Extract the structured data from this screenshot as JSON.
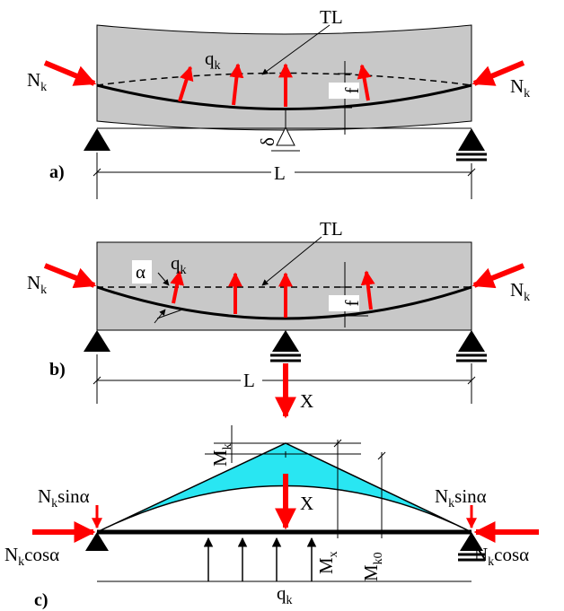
{
  "panel_a": {
    "label": "a)",
    "tendon_label": "TL",
    "load_main": "q",
    "load_sub": "k",
    "force_left_main": "N",
    "force_left_sub": "k",
    "force_right_main": "N",
    "force_right_sub": "k",
    "sag": "f",
    "deflection": "δ",
    "span": "L"
  },
  "panel_b": {
    "label": "b)",
    "tendon_label": "TL",
    "angle": "α",
    "load_main": "q",
    "load_sub": "k",
    "force_left_main": "N",
    "force_left_sub": "k",
    "force_right_main": "N",
    "force_right_sub": "k",
    "sag": "f",
    "span": "L",
    "reaction": "X"
  },
  "panel_c": {
    "label": "c)",
    "moment_k_main": "M",
    "moment_k_sub": "k",
    "moment_x_main": "M",
    "moment_x_sub": "x",
    "moment_k0_main": "M",
    "moment_k0_sub": "k0",
    "reaction": "X",
    "vert_left_main": "N",
    "vert_left_sub": "k",
    "vert_left_tail": "sinα",
    "vert_right_main": "N",
    "vert_right_sub": "k",
    "vert_right_tail": "sinα",
    "horiz_left_main": "N",
    "horiz_left_sub": "k",
    "horiz_left_tail": "cosα",
    "horiz_right_main": "N",
    "horiz_right_sub": "k",
    "horiz_right_tail": "cosα",
    "load_main": "q",
    "load_sub": "k"
  },
  "colors": {
    "red": "#ff0000",
    "cyan": "#29e6f2",
    "gray": "#c8c8c8"
  }
}
